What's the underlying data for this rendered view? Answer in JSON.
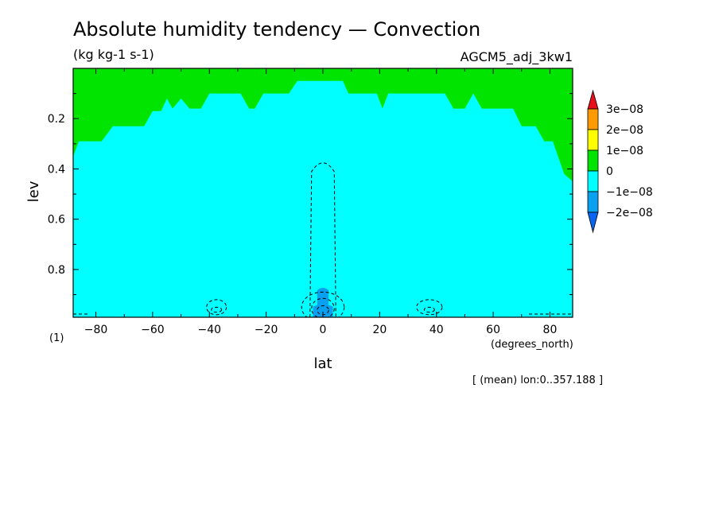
{
  "chart_data": {
    "type": "heatmap",
    "title": "Absolute humidity tendency — Convection",
    "units": "(kg kg-1 s-1)",
    "dataset": "AGCM5_adj_3kw1",
    "xlabel": "lat",
    "xunits": "(degrees_north)",
    "ylabel": "lev",
    "yunits": "(1)",
    "xlim": [
      -88,
      88
    ],
    "ylim": [
      0.0,
      0.99
    ],
    "y_inverted": true,
    "x_ticks": [
      -80,
      -60,
      -40,
      -20,
      0,
      20,
      40,
      60,
      80
    ],
    "x_tick_labels": [
      "−80",
      "−60",
      "−40",
      "−20",
      "0",
      "20",
      "40",
      "60",
      "80"
    ],
    "y_ticks": [
      0.2,
      0.4,
      0.6,
      0.8
    ],
    "y_tick_labels": [
      "0.2",
      "0.4",
      "0.6",
      "0.8"
    ],
    "note": "[ (mean) lon:0..357.188 ]",
    "colorbar": {
      "labels": [
        "3e−08",
        "2e−08",
        "1e−08",
        "0",
        "−1e−08",
        "−2e−08"
      ],
      "colors": [
        "#e8101a",
        "#ff9a00",
        "#ffff00",
        "#00e400",
        "#00ffff",
        "#0aa0f0",
        "#0a64f0"
      ]
    },
    "green_boundary": [
      {
        "lat": -88,
        "lev": 0.35
      },
      {
        "lat": -86,
        "lev": 0.29
      },
      {
        "lat": -78,
        "lev": 0.29
      },
      {
        "lat": -74,
        "lev": 0.23
      },
      {
        "lat": -63,
        "lev": 0.23
      },
      {
        "lat": -60,
        "lev": 0.17
      },
      {
        "lat": -57,
        "lev": 0.17
      },
      {
        "lat": -55,
        "lev": 0.12
      },
      {
        "lat": -53,
        "lev": 0.16
      },
      {
        "lat": -50,
        "lev": 0.12
      },
      {
        "lat": -47,
        "lev": 0.16
      },
      {
        "lat": -43,
        "lev": 0.16
      },
      {
        "lat": -40,
        "lev": 0.1
      },
      {
        "lat": -29,
        "lev": 0.1
      },
      {
        "lat": -26,
        "lev": 0.16
      },
      {
        "lat": -24,
        "lev": 0.16
      },
      {
        "lat": -21,
        "lev": 0.1
      },
      {
        "lat": -12,
        "lev": 0.1
      },
      {
        "lat": -9,
        "lev": 0.05
      },
      {
        "lat": 7,
        "lev": 0.05
      },
      {
        "lat": 9,
        "lev": 0.1
      },
      {
        "lat": 19,
        "lev": 0.1
      },
      {
        "lat": 21,
        "lev": 0.16
      },
      {
        "lat": 23,
        "lev": 0.1
      },
      {
        "lat": 43,
        "lev": 0.1
      },
      {
        "lat": 46,
        "lev": 0.16
      },
      {
        "lat": 50,
        "lev": 0.16
      },
      {
        "lat": 53,
        "lev": 0.1
      },
      {
        "lat": 56,
        "lev": 0.16
      },
      {
        "lat": 67,
        "lev": 0.16
      },
      {
        "lat": 70,
        "lev": 0.23
      },
      {
        "lat": 75,
        "lev": 0.23
      },
      {
        "lat": 78,
        "lev": 0.29
      },
      {
        "lat": 81,
        "lev": 0.29
      },
      {
        "lat": 85,
        "lev": 0.42
      },
      {
        "lat": 88,
        "lev": 0.45
      }
    ],
    "blue_regions": [
      {
        "lat": 0,
        "lev_top": 0.87,
        "half_width": 2,
        "shape": "plume"
      },
      {
        "lat": 0,
        "lev_top": 0.935,
        "half_width": 3.5,
        "shape": "core"
      }
    ],
    "contours": [
      {
        "kind": "plume",
        "lat": 0,
        "lev_top": 0.36,
        "half_width": 4,
        "level": "dashed"
      },
      {
        "kind": "ellipse",
        "lat": -37.5,
        "lev": 0.95,
        "half_width": 3.5,
        "half_height": 0.03
      },
      {
        "kind": "ellipse",
        "lat": -37.5,
        "lev": 0.96,
        "half_width": 1.8,
        "half_height": 0.01
      },
      {
        "kind": "ellipse",
        "lat": 37.5,
        "lev": 0.95,
        "half_width": 4.5,
        "half_height": 0.03
      },
      {
        "kind": "ellipse",
        "lat": 37.5,
        "lev": 0.96,
        "half_width": 1.8,
        "half_height": 0.01
      },
      {
        "kind": "ellipse",
        "lat": 0,
        "lev": 0.95,
        "half_width": 7.5,
        "half_height": 0.06
      },
      {
        "kind": "ellipse",
        "lat": 0,
        "lev": 0.955,
        "half_width": 4,
        "half_height": 0.04
      },
      {
        "kind": "ellipse",
        "lat": 0,
        "lev": 0.962,
        "half_width": 2,
        "half_height": 0.018
      }
    ]
  }
}
